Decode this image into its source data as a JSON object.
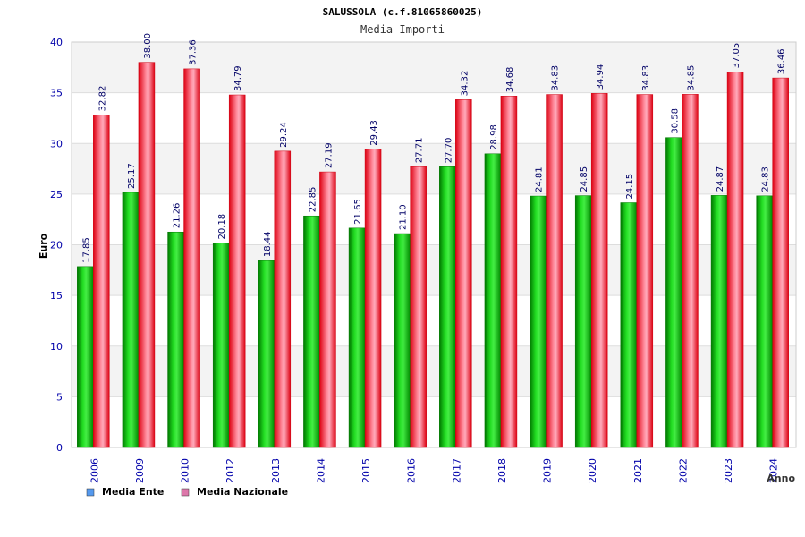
{
  "chart_data": {
    "type": "bar",
    "title": "SALUSSOLA (c.f.81065860025)",
    "subtitle": "Media Importi",
    "xlabel": "Anno",
    "ylabel": "Euro",
    "ylim": [
      0,
      40
    ],
    "yticks": [
      0,
      5,
      10,
      15,
      20,
      25,
      30,
      35,
      40
    ],
    "grid": true,
    "legend_position": "bottom-left",
    "categories": [
      "2006",
      "2009",
      "2010",
      "2012",
      "2013",
      "2014",
      "2015",
      "2016",
      "2017",
      "2018",
      "2019",
      "2020",
      "2021",
      "2022",
      "2023",
      "2024"
    ],
    "series": [
      {
        "name": "Media Ente",
        "color": "#00bb00",
        "legend_color": "#5599ee",
        "values": [
          17.85,
          25.17,
          21.26,
          20.18,
          18.44,
          22.85,
          21.65,
          21.1,
          27.7,
          28.98,
          24.81,
          24.85,
          24.15,
          30.58,
          24.87,
          24.83
        ],
        "labels": [
          "17.85",
          "25.17",
          "21.26",
          "20.18",
          "18.44",
          "22.85",
          "21.65",
          "21.10",
          "27.70",
          "28.98",
          "24.81",
          "24.85",
          "24.15",
          "30.58",
          "24.87",
          "24.83"
        ]
      },
      {
        "name": "Media Nazionale",
        "color": "#ee1122",
        "legend_color": "#dd77aa",
        "values": [
          32.82,
          38.0,
          37.36,
          34.79,
          29.24,
          27.19,
          29.43,
          27.71,
          34.32,
          34.68,
          34.83,
          34.94,
          34.83,
          34.85,
          37.05,
          36.46
        ],
        "labels": [
          "32.82",
          "38.00",
          "37.36",
          "34.79",
          "29.24",
          "27.19",
          "29.43",
          "27.71",
          "34.32",
          "34.68",
          "34.83",
          "34.94",
          "34.83",
          "34.85",
          "37.05",
          "36.46"
        ]
      }
    ]
  }
}
